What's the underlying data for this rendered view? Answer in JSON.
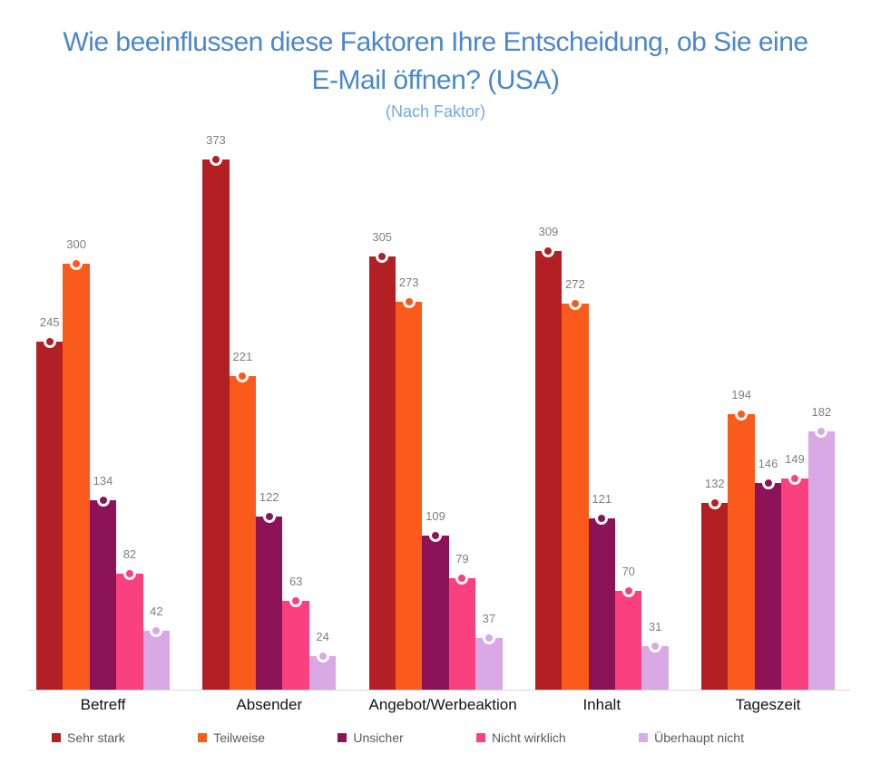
{
  "header": {
    "title": "Wie beeinflussen diese Faktoren Ihre Entscheidung, ob Sie eine E-Mail öffnen? (USA)",
    "subtitle": "(Nach Faktor)"
  },
  "chart_data": {
    "type": "bar",
    "title": "Wie beeinflussen diese Faktoren Ihre Entscheidung, ob Sie eine E-Mail öffnen? (USA)",
    "subtitle": "(Nach Faktor)",
    "categories": [
      "Betreff",
      "Absender",
      "Angebot/Werbeaktion",
      "Inhalt",
      "Tageszeit"
    ],
    "series": [
      {
        "name": "Sehr stark",
        "color": "#b22024",
        "values": [
          245,
          373,
          305,
          309,
          132
        ]
      },
      {
        "name": "Teilweise",
        "color": "#fa5a1c",
        "values": [
          300,
          221,
          273,
          272,
          194
        ]
      },
      {
        "name": "Unsicher",
        "color": "#8c1358",
        "values": [
          134,
          122,
          109,
          121,
          146
        ]
      },
      {
        "name": "Nicht wirklich",
        "color": "#f9417f",
        "values": [
          82,
          63,
          79,
          70,
          149
        ]
      },
      {
        "name": "Überhaupt nicht",
        "color": "#d9a9e6",
        "values": [
          42,
          24,
          37,
          31,
          182
        ]
      }
    ],
    "ylim": [
      0,
      400
    ],
    "grid": false,
    "legend_position": "bottom",
    "value_labels": true,
    "marker": "circle-on-bar-top"
  },
  "style_colors": {
    "title": "#4a87ce",
    "subtitle": "#74a8e4",
    "value_label": "#7f7f7f",
    "category_label": "#141414",
    "legend_text": "#5a5a5a",
    "axis_line": "#d9d9d9",
    "background": "#ffffff"
  }
}
